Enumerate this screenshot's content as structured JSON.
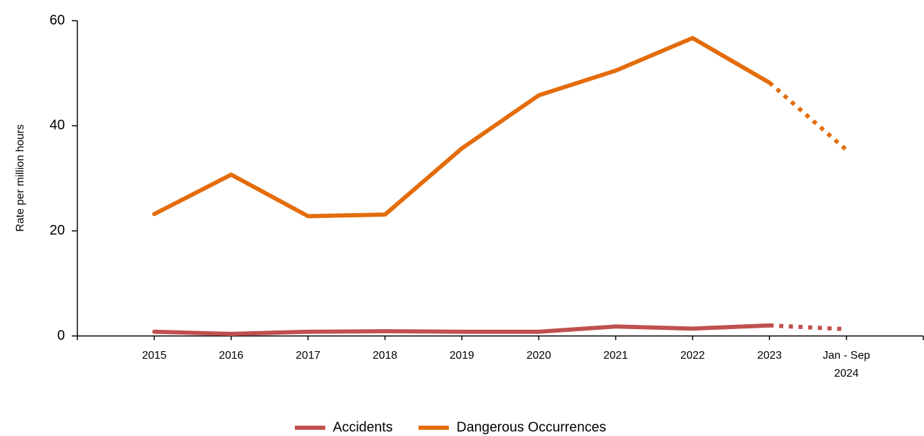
{
  "chart_data": {
    "type": "line",
    "y_label": "Rate per million hours",
    "categories": [
      "2015",
      "2016",
      "2017",
      "2018",
      "2019",
      "2020",
      "2021",
      "2022",
      "2023",
      "Jan - Sep 2024"
    ],
    "series": [
      {
        "name": "Accidents",
        "color": "#c0504d",
        "values": [
          0.8,
          0.4,
          0.8,
          0.9,
          0.8,
          0.8,
          1.8,
          1.4,
          2.0,
          1.3
        ]
      },
      {
        "name": "Dangerous Occurrences",
        "color": "#e46c0a",
        "values": [
          23.2,
          30.7,
          22.8,
          23.1,
          35.7,
          45.8,
          50.5,
          56.7,
          48.2,
          35.4
        ]
      }
    ],
    "ylim": [
      0,
      60
    ],
    "yticks": [
      0,
      20,
      40,
      60
    ],
    "dashed_last_segment": true,
    "legend": "bottom",
    "grid": false
  }
}
